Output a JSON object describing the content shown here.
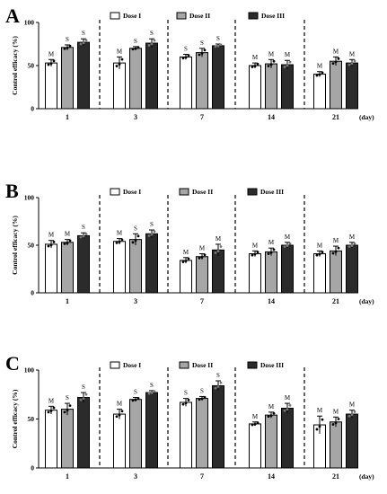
{
  "chart_data": [
    {
      "panel": "A",
      "type": "bar",
      "ylabel": "Control efficacy (%)",
      "ylim": [
        0,
        100
      ],
      "yticks": [
        0,
        50,
        100
      ],
      "categories": [
        "1",
        "3",
        "7",
        "14",
        "21"
      ],
      "x_unit": "(day)",
      "legend_position": "top",
      "series": [
        {
          "name": "Dose I",
          "values": [
            53,
            53,
            60,
            50,
            40
          ],
          "errors": [
            4,
            7,
            3,
            3,
            3
          ],
          "labels": [
            "M",
            "M",
            "S",
            "M",
            "M"
          ]
        },
        {
          "name": "Dose II",
          "values": [
            71,
            70,
            65,
            52,
            55
          ],
          "errors": [
            3,
            2,
            5,
            5,
            5
          ],
          "labels": [
            "S",
            "S",
            "S",
            "M",
            "M"
          ]
        },
        {
          "name": "Dose III",
          "values": [
            77,
            76,
            73,
            51,
            53
          ],
          "errors": [
            4,
            5,
            2,
            5,
            4
          ],
          "labels": [
            "S",
            "S",
            "S",
            "M",
            "M"
          ]
        }
      ]
    },
    {
      "panel": "B",
      "type": "bar",
      "ylabel": "Control efficacy (%)",
      "ylim": [
        0,
        100
      ],
      "yticks": [
        0,
        50,
        100
      ],
      "categories": [
        "1",
        "3",
        "7",
        "14",
        "21"
      ],
      "x_unit": "(day)",
      "legend_position": "top",
      "series": [
        {
          "name": "Dose I",
          "values": [
            51,
            54,
            34,
            41,
            41
          ],
          "errors": [
            4,
            3,
            3,
            3,
            3
          ],
          "labels": [
            "M",
            "M",
            "M",
            "M",
            "M"
          ]
        },
        {
          "name": "Dose II",
          "values": [
            53,
            56,
            38,
            43,
            44
          ],
          "errors": [
            3,
            6,
            3,
            4,
            5
          ],
          "labels": [
            "M",
            "S",
            "M",
            "M",
            "M"
          ]
        },
        {
          "name": "Dose III",
          "values": [
            60,
            62,
            45,
            50,
            50
          ],
          "errors": [
            3,
            4,
            6,
            3,
            3
          ],
          "labels": [
            "S",
            "S",
            "M",
            "M",
            "M"
          ]
        }
      ]
    },
    {
      "panel": "C",
      "type": "bar",
      "ylabel": "Control efficacy (%)",
      "ylim": [
        0,
        100
      ],
      "yticks": [
        0,
        50,
        100
      ],
      "categories": [
        "1",
        "3",
        "7",
        "14",
        "21"
      ],
      "x_unit": "(day)",
      "legend_position": "top",
      "series": [
        {
          "name": "Dose I",
          "values": [
            59,
            55,
            67,
            45,
            44
          ],
          "errors": [
            4,
            5,
            4,
            2,
            9
          ],
          "labels": [
            "M",
            "M",
            "S",
            "M",
            "M"
          ]
        },
        {
          "name": "Dose II",
          "values": [
            60,
            70,
            71,
            54,
            47
          ],
          "errors": [
            6,
            2,
            2,
            3,
            5
          ],
          "labels": [
            "S",
            "S",
            "S",
            "M",
            "M"
          ]
        },
        {
          "name": "Dose III",
          "values": [
            72,
            77,
            84,
            61,
            55
          ],
          "errors": [
            5,
            2,
            5,
            5,
            4
          ],
          "labels": [
            "S",
            "S",
            "S",
            "M",
            "M"
          ]
        }
      ]
    }
  ],
  "colors": {
    "dose_1": "#ffffff",
    "dose_2": "#a6a6a6",
    "dose_3": "#2b2b2b",
    "axis": "#000000"
  }
}
